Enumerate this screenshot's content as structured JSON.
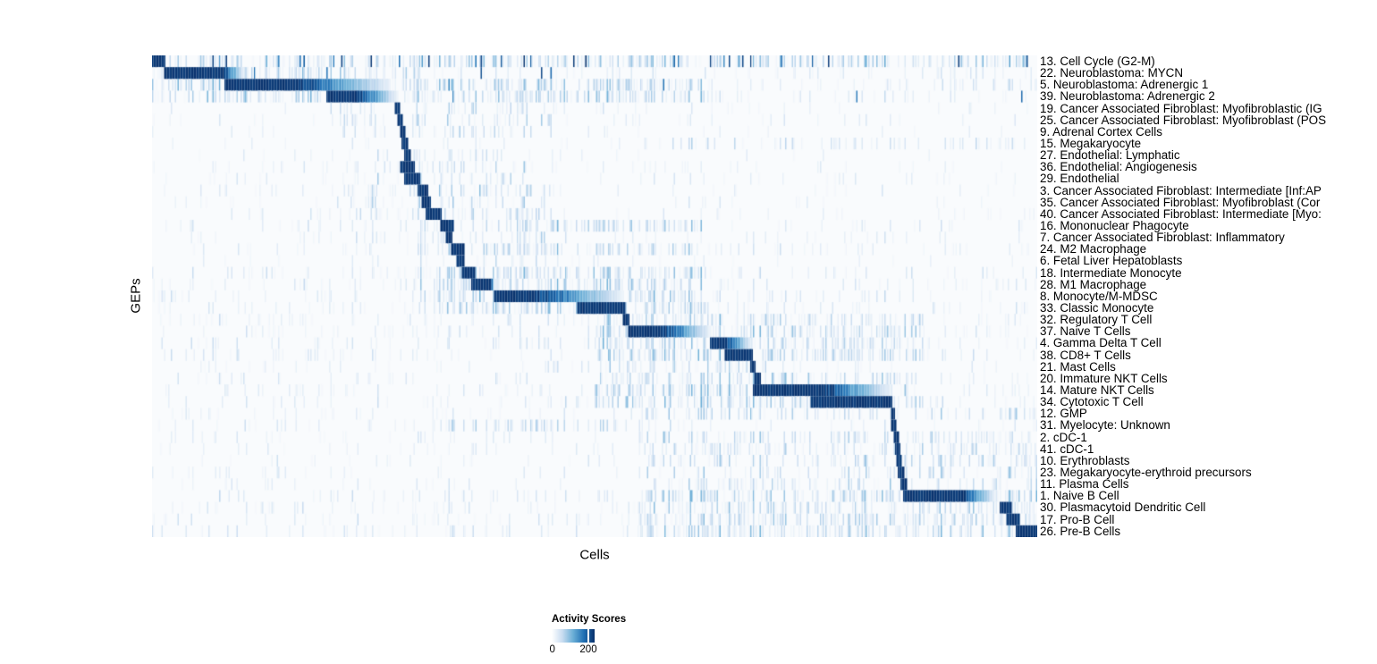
{
  "chart_data": {
    "type": "heatmap",
    "xlabel": "Cells",
    "ylabel": "GEPs",
    "grid": false,
    "n_rows": 41,
    "value_range": [
      0,
      240
    ],
    "legend": {
      "title": "Activity Scores",
      "ticks": [
        "0",
        "200"
      ],
      "tick_values": [
        0,
        200
      ],
      "tick_200_fraction": 0.833,
      "position": "bottom-center",
      "colormap": "Blues (white to dark blue)"
    },
    "colors": {
      "page_background": "#ffffff",
      "heatmap_background": "#f3f8fd",
      "blues_stops": [
        "#ffffff",
        "#c8dcf0",
        "#6aaed6",
        "#2070b4",
        "#08306b"
      ],
      "text": "#000000"
    },
    "rows": [
      {
        "label": "13. Cell Cycle (G2-M)",
        "block": [
          0.0,
          0.013,
          0.013
        ],
        "noise": [
          0.0,
          1.0
        ],
        "nd": 0.5,
        "ns": 0.55,
        "spikes": 0.045
      },
      {
        "label": "22. Neuroblastoma: MYCN",
        "block": [
          0.015,
          0.079,
          0.103
        ],
        "noise": [
          0.0,
          0.3
        ],
        "nd": 0.5,
        "ns": 0.5,
        "spikes": 0.008
      },
      {
        "label": "5. Neuroblastoma: Adrenergic 1",
        "block": [
          0.082,
          0.162,
          0.268
        ],
        "noise": [
          0.0,
          0.62
        ],
        "nd": 0.55,
        "ns": 0.5,
        "spikes": 0.006
      },
      {
        "label": "39. Neuroblastoma: Adrenergic 2",
        "block": [
          0.197,
          0.23,
          0.275
        ],
        "noise": [
          0.0,
          0.62
        ],
        "nd": 0.55,
        "ns": 0.5,
        "spikes": 0.006
      },
      {
        "label": "19. Cancer Associated Fibroblast: Myofibroblastic (IG",
        "block": [
          0.275,
          0.279,
          0.279
        ],
        "noise": [
          0.2,
          0.45
        ],
        "nd": 0.25,
        "ns": 0.35,
        "spikes": 0
      },
      {
        "label": "25. Cancer Associated Fibroblast: Myofibroblast (POS",
        "block": [
          0.278,
          0.282,
          0.282
        ],
        "noise": [
          0.2,
          0.45
        ],
        "nd": 0.25,
        "ns": 0.35,
        "spikes": 0
      },
      {
        "label": "9. Adrenal Cortex Cells",
        "block": [
          0.281,
          0.285,
          0.285
        ],
        "noise": [
          0.2,
          0.45
        ],
        "nd": 0.2,
        "ns": 0.3,
        "spikes": 0
      },
      {
        "label": "15. Megakaryocyte",
        "block": [
          0.283,
          0.288,
          0.288
        ],
        "noise": [
          0.55,
          1.0
        ],
        "nd": 0.22,
        "ns": 0.32,
        "spikes": 0
      },
      {
        "label": "27. Endothelial: Lymphatic",
        "block": [
          0.286,
          0.291,
          0.291
        ],
        "noise": [
          0.25,
          0.42
        ],
        "nd": 0.25,
        "ns": 0.35,
        "spikes": 0
      },
      {
        "label": "36. Endothelial: Angiogenesis",
        "block": [
          0.281,
          0.295,
          0.295
        ],
        "noise": [
          0.25,
          0.42
        ],
        "nd": 0.3,
        "ns": 0.4,
        "spikes": 0
      },
      {
        "label": "29. Endothelial",
        "block": [
          0.285,
          0.301,
          0.301
        ],
        "noise": [
          0.25,
          0.42
        ],
        "nd": 0.3,
        "ns": 0.4,
        "spikes": 0
      },
      {
        "label": "3. Cancer Associated Fibroblast: Intermediate [Inf:AP",
        "block": [
          0.3,
          0.311,
          0.311
        ],
        "noise": [
          0.22,
          0.45
        ],
        "nd": 0.3,
        "ns": 0.4,
        "spikes": 0
      },
      {
        "label": "35. Cancer Associated Fibroblast: Myofibroblast (Cor",
        "block": [
          0.305,
          0.314,
          0.314
        ],
        "noise": [
          0.22,
          0.45
        ],
        "nd": 0.3,
        "ns": 0.4,
        "spikes": 0
      },
      {
        "label": "40. Cancer Associated Fibroblast: Intermediate [Myo:",
        "block": [
          0.31,
          0.326,
          0.326
        ],
        "noise": [
          0.22,
          0.45
        ],
        "nd": 0.3,
        "ns": 0.4,
        "spikes": 0
      },
      {
        "label": "16. Mononuclear Phagocyte",
        "block": [
          0.327,
          0.34,
          0.34
        ],
        "noise": [
          0.3,
          0.62
        ],
        "nd": 0.45,
        "ns": 0.45,
        "spikes": 0
      },
      {
        "label": "7. Cancer Associated Fibroblast: Inflammatory",
        "block": [
          0.333,
          0.338,
          0.338
        ],
        "noise": [
          0.22,
          0.45
        ],
        "nd": 0.3,
        "ns": 0.35,
        "spikes": 0
      },
      {
        "label": "24. M2 Macrophage",
        "block": [
          0.338,
          0.352,
          0.352
        ],
        "noise": [
          0.3,
          0.62
        ],
        "nd": 0.45,
        "ns": 0.45,
        "spikes": 0
      },
      {
        "label": "6. Fetal Liver Hepatoblasts",
        "block": [
          0.344,
          0.351,
          0.351
        ],
        "noise": [
          0.3,
          0.52
        ],
        "nd": 0.25,
        "ns": 0.32,
        "spikes": 0
      },
      {
        "label": "18. Intermediate Monocyte",
        "block": [
          0.351,
          0.364,
          0.364
        ],
        "noise": [
          0.3,
          0.62
        ],
        "nd": 0.5,
        "ns": 0.5,
        "spikes": 0
      },
      {
        "label": "28. M1 Macrophage",
        "block": [
          0.361,
          0.382,
          0.387
        ],
        "noise": [
          0.3,
          0.62
        ],
        "nd": 0.5,
        "ns": 0.5,
        "spikes": 0
      },
      {
        "label": "8. Monocyte/M-MDSC",
        "block": [
          0.387,
          0.43,
          0.53
        ],
        "noise": [
          0.3,
          0.62
        ],
        "nd": 0.5,
        "ns": 0.5,
        "spikes": 0
      },
      {
        "label": "33. Classic Monocyte",
        "block": [
          0.481,
          0.533,
          0.533
        ],
        "noise": [
          0.3,
          0.62
        ],
        "nd": 0.5,
        "ns": 0.5,
        "spikes": 0
      },
      {
        "label": "32. Regulatory T Cell",
        "block": [
          0.533,
          0.538,
          0.538
        ],
        "noise": [
          0.5,
          0.87
        ],
        "nd": 0.5,
        "ns": 0.45,
        "spikes": 0
      },
      {
        "label": "37. Naive T Cells",
        "block": [
          0.538,
          0.576,
          0.629
        ],
        "noise": [
          0.5,
          0.87
        ],
        "nd": 0.55,
        "ns": 0.5,
        "spikes": 0
      },
      {
        "label": "4. Gamma Delta T Cell",
        "block": [
          0.631,
          0.646,
          0.675
        ],
        "noise": [
          0.5,
          0.87
        ],
        "nd": 0.5,
        "ns": 0.5,
        "spikes": 0
      },
      {
        "label": "38. CD8+ T Cells",
        "block": [
          0.648,
          0.677,
          0.677
        ],
        "noise": [
          0.5,
          0.87
        ],
        "nd": 0.5,
        "ns": 0.5,
        "spikes": 0
      },
      {
        "label": "21. Mast Cells",
        "block": [
          0.677,
          0.681,
          0.681
        ],
        "noise": [
          0.45,
          0.7
        ],
        "nd": 0.3,
        "ns": 0.35,
        "spikes": 0
      },
      {
        "label": "20. Immature NKT Cells",
        "block": [
          0.681,
          0.687,
          0.687
        ],
        "noise": [
          0.5,
          0.87
        ],
        "nd": 0.45,
        "ns": 0.45,
        "spikes": 0
      },
      {
        "label": "14. Mature NKT Cells",
        "block": [
          0.68,
          0.758,
          0.833
        ],
        "noise": [
          0.5,
          0.87
        ],
        "nd": 0.5,
        "ns": 0.5,
        "spikes": 0
      },
      {
        "label": "34. Cytotoxic T Cell",
        "block": [
          0.744,
          0.835,
          0.835
        ],
        "noise": [
          0.5,
          0.87
        ],
        "nd": 0.5,
        "ns": 0.5,
        "spikes": 0
      },
      {
        "label": "12. GMP",
        "block": [
          0.835,
          0.838,
          0.838
        ],
        "noise": [
          0.55,
          1.0
        ],
        "nd": 0.35,
        "ns": 0.4,
        "spikes": 0
      },
      {
        "label": "31. Myelocyte: Unknown",
        "block": [
          0.836,
          0.84,
          0.84
        ],
        "noise": [
          0.3,
          0.6
        ],
        "nd": 0.35,
        "ns": 0.4,
        "spikes": 0
      },
      {
        "label": "2. cDC-1",
        "block": [
          0.838,
          0.843,
          0.843
        ],
        "noise": [
          0.55,
          1.0
        ],
        "nd": 0.35,
        "ns": 0.4,
        "spikes": 0
      },
      {
        "label": "41. cDC-1",
        "block": [
          0.84,
          0.844,
          0.844
        ],
        "noise": [
          0.55,
          1.0
        ],
        "nd": 0.35,
        "ns": 0.4,
        "spikes": 0
      },
      {
        "label": "10. Erythroblasts",
        "block": [
          0.842,
          0.846,
          0.846
        ],
        "noise": [
          0.55,
          1.0
        ],
        "nd": 0.3,
        "ns": 0.4,
        "spikes": 0
      },
      {
        "label": "23. Megakaryocyte-erythroid precursors",
        "block": [
          0.843,
          0.848,
          0.848
        ],
        "noise": [
          0.55,
          1.0
        ],
        "nd": 0.3,
        "ns": 0.4,
        "spikes": 0
      },
      {
        "label": "11. Plasma Cells",
        "block": [
          0.846,
          0.851,
          0.851
        ],
        "noise": [
          0.55,
          1.0
        ],
        "nd": 0.3,
        "ns": 0.4,
        "spikes": 0
      },
      {
        "label": "1. Naive B Cell",
        "block": [
          0.849,
          0.914,
          0.952
        ],
        "noise": [
          0.55,
          1.0
        ],
        "nd": 0.5,
        "ns": 0.5,
        "spikes": 0
      },
      {
        "label": "30. Plasmacytoid Dendritic Cell",
        "block": [
          0.958,
          0.97,
          0.97
        ],
        "noise": [
          0.55,
          1.0
        ],
        "nd": 0.45,
        "ns": 0.45,
        "spikes": 0
      },
      {
        "label": "17. Pro-B Cell",
        "block": [
          0.966,
          0.979,
          0.979
        ],
        "noise": [
          0.55,
          1.0
        ],
        "nd": 0.45,
        "ns": 0.45,
        "spikes": 0
      },
      {
        "label": "26. Pre-B Cells",
        "block": [
          0.976,
          1.0,
          1.0
        ],
        "noise": [
          0.55,
          1.0
        ],
        "nd": 0.5,
        "ns": 0.5,
        "spikes": 0
      }
    ]
  }
}
